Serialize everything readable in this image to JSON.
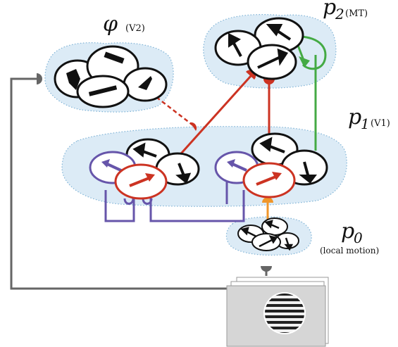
{
  "labels": {
    "phi": {
      "symbol": "φ",
      "sub": "(V2)"
    },
    "p2": {
      "symbol": "p",
      "index": "2",
      "sub": "(MT)"
    },
    "p1": {
      "symbol": "p",
      "index": "1",
      "sub": "(V1)"
    },
    "p0": {
      "symbol": "p",
      "index": "0",
      "sub": "(local motion)"
    }
  },
  "colors": {
    "cloud_fill": "#dcebf6",
    "cloud_stroke": "#7fb3d6",
    "feedforward_red": "#cc3322",
    "lateral_green": "#44aa44",
    "inhibitory_purple": "#6655aa",
    "input_orange": "#f0962a",
    "feedback_gray": "#666666",
    "neuron_black": "#111111"
  },
  "icons": {
    "stimulus": "grating-stimulus-icon",
    "neuron": "oriented-unit-icon",
    "synapse": "synapse-terminal-icon"
  }
}
